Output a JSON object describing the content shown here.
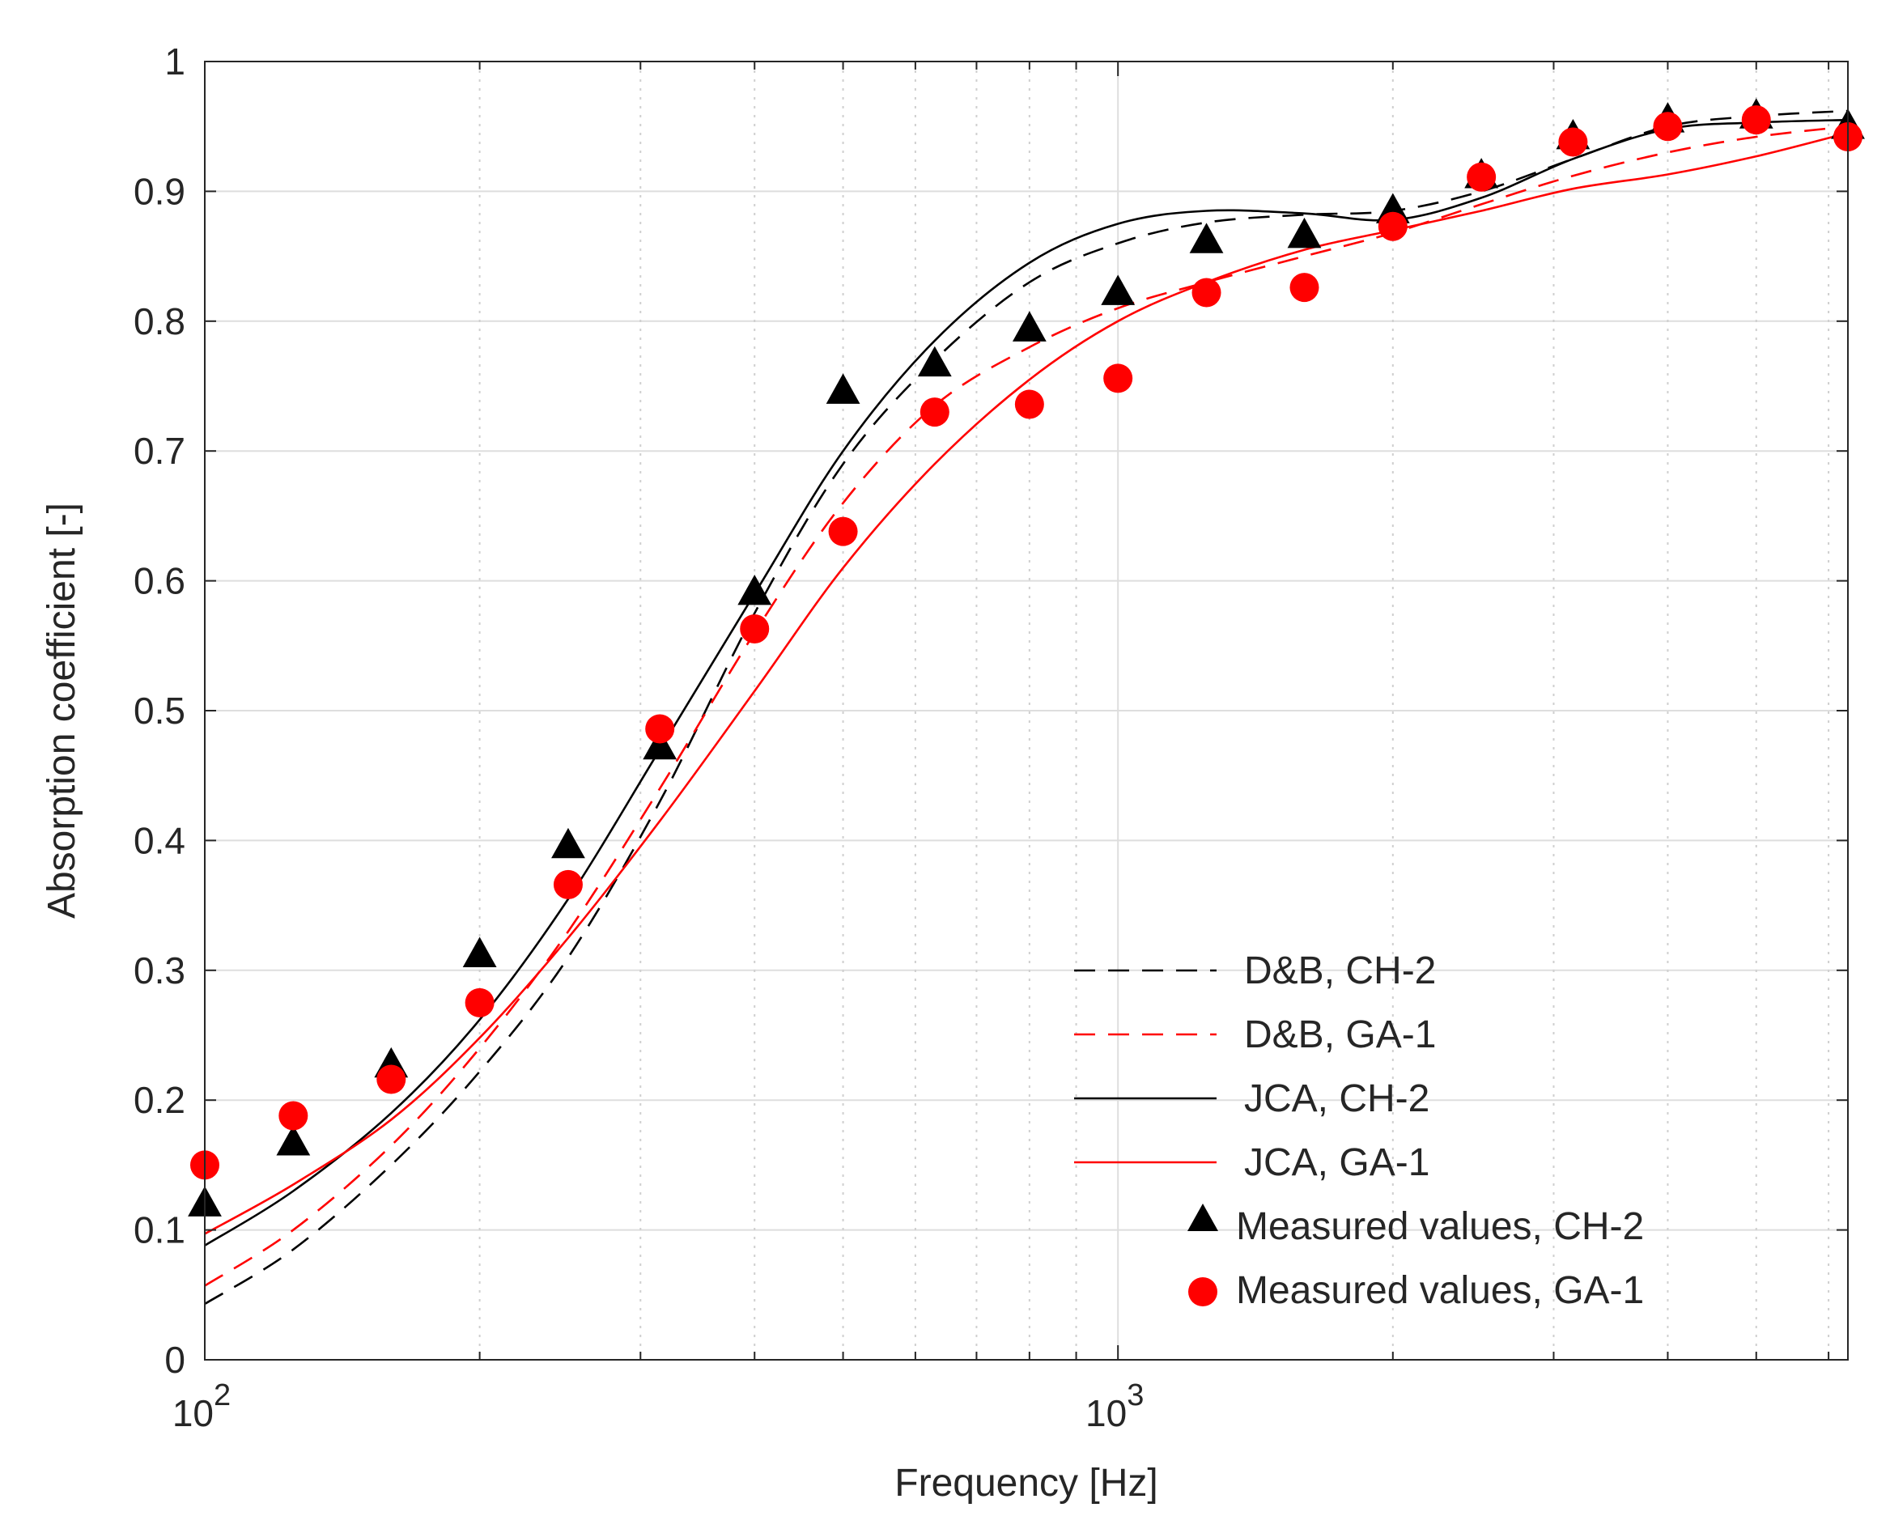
{
  "chart_data": {
    "type": "line",
    "xscale": "log",
    "xlabel": "Frequency [Hz]",
    "ylabel": "Absorption coefficient [-]",
    "xlim": [
      100,
      6300
    ],
    "ylim": [
      0,
      1
    ],
    "grid": true,
    "legend_position": "lower-right",
    "x_ticks": [
      {
        "value": 100,
        "base": "10",
        "exp": "2"
      },
      {
        "value": 1000,
        "base": "10",
        "exp": "3"
      }
    ],
    "y_ticks": [
      {
        "value": 0,
        "label": "0"
      },
      {
        "value": 0.1,
        "label": "0.1"
      },
      {
        "value": 0.2,
        "label": "0.2"
      },
      {
        "value": 0.3,
        "label": "0.3"
      },
      {
        "value": 0.4,
        "label": "0.4"
      },
      {
        "value": 0.5,
        "label": "0.5"
      },
      {
        "value": 0.6,
        "label": "0.6"
      },
      {
        "value": 0.7,
        "label": "0.7"
      },
      {
        "value": 0.8,
        "label": "0.8"
      },
      {
        "value": 0.9,
        "label": "0.9"
      },
      {
        "value": 1,
        "label": "1"
      }
    ],
    "series": [
      {
        "name": "D&B, CH-2",
        "kind": "line",
        "color": "#000000",
        "dash": "dashed",
        "x": [
          100,
          125,
          160,
          200,
          250,
          315,
          400,
          500,
          630,
          800,
          1000,
          1250,
          1600,
          2000,
          2500,
          3150,
          4000,
          5000,
          6300
        ],
        "y": [
          0.043,
          0.085,
          0.15,
          0.222,
          0.31,
          0.43,
          0.575,
          0.69,
          0.77,
          0.83,
          0.86,
          0.876,
          0.882,
          0.885,
          0.9,
          0.925,
          0.95,
          0.958,
          0.962
        ]
      },
      {
        "name": "D&B, GA-1",
        "kind": "line",
        "color": "#ff0000",
        "dash": "dashed",
        "x": [
          100,
          125,
          160,
          200,
          250,
          315,
          400,
          500,
          630,
          800,
          1000,
          1250,
          1600,
          2000,
          2500,
          3150,
          4000,
          5000,
          6300
        ],
        "y": [
          0.057,
          0.1,
          0.165,
          0.24,
          0.33,
          0.44,
          0.56,
          0.66,
          0.735,
          0.78,
          0.81,
          0.83,
          0.85,
          0.868,
          0.89,
          0.912,
          0.93,
          0.942,
          0.95
        ]
      },
      {
        "name": "JCA, CH-2",
        "kind": "line",
        "color": "#000000",
        "dash": "solid",
        "x": [
          100,
          125,
          160,
          200,
          250,
          315,
          400,
          500,
          630,
          800,
          1000,
          1250,
          1600,
          2000,
          2500,
          3150,
          4000,
          5000,
          6300
        ],
        "y": [
          0.088,
          0.13,
          0.19,
          0.262,
          0.355,
          0.47,
          0.59,
          0.7,
          0.785,
          0.845,
          0.875,
          0.885,
          0.883,
          0.878,
          0.895,
          0.925,
          0.948,
          0.953,
          0.955
        ]
      },
      {
        "name": "JCA, GA-1",
        "kind": "line",
        "color": "#ff0000",
        "dash": "solid",
        "x": [
          100,
          125,
          160,
          200,
          250,
          315,
          400,
          500,
          630,
          800,
          1000,
          1250,
          1600,
          2000,
          2500,
          3150,
          4000,
          5000,
          6300
        ],
        "y": [
          0.097,
          0.135,
          0.185,
          0.248,
          0.325,
          0.415,
          0.515,
          0.61,
          0.69,
          0.755,
          0.8,
          0.83,
          0.855,
          0.87,
          0.885,
          0.902,
          0.913,
          0.927,
          0.945
        ]
      },
      {
        "name": "Measured values, CH-2",
        "kind": "scatter",
        "marker": "triangle",
        "color": "#000000",
        "x": [
          100,
          125,
          160,
          200,
          250,
          315,
          400,
          500,
          630,
          800,
          1000,
          1250,
          1600,
          2000,
          2500,
          3150,
          4000,
          5000,
          6300
        ],
        "y": [
          0.12,
          0.167,
          0.227,
          0.312,
          0.396,
          0.472,
          0.591,
          0.746,
          0.767,
          0.794,
          0.822,
          0.862,
          0.866,
          0.885,
          0.912,
          0.942,
          0.955,
          0.958,
          0.95
        ]
      },
      {
        "name": "Measured values, GA-1",
        "kind": "scatter",
        "marker": "circle",
        "color": "#ff0000",
        "x": [
          100,
          125,
          160,
          200,
          250,
          315,
          400,
          500,
          630,
          800,
          1000,
          1250,
          1600,
          2000,
          2500,
          3150,
          4000,
          5000,
          6300
        ],
        "y": [
          0.15,
          0.188,
          0.216,
          0.275,
          0.366,
          0.486,
          0.563,
          0.638,
          0.73,
          0.736,
          0.756,
          0.822,
          0.826,
          0.873,
          0.911,
          0.938,
          0.95,
          0.955,
          0.942
        ]
      }
    ]
  }
}
